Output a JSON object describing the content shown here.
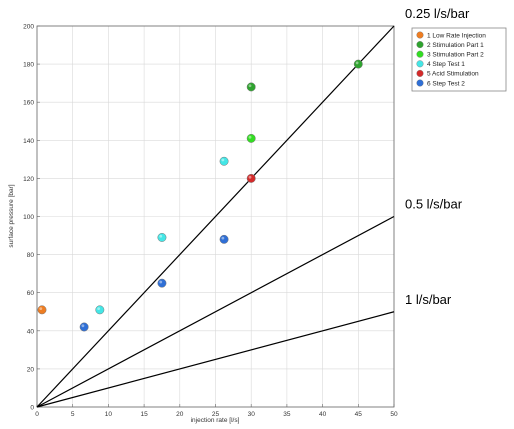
{
  "chart_data": {
    "type": "scatter",
    "title": "",
    "xlabel": "injection rate [l/s]",
    "ylabel": "surface pressure [bar]",
    "xlim": [
      0,
      50
    ],
    "ylim": [
      0,
      200
    ],
    "xticks": [
      0,
      5,
      10,
      15,
      20,
      25,
      30,
      35,
      40,
      45,
      50
    ],
    "yticks": [
      0,
      20,
      40,
      60,
      80,
      100,
      120,
      140,
      160,
      180,
      200
    ],
    "grid": true,
    "legend_position": "top-right",
    "series": [
      {
        "name": "1 Low Rate Injection",
        "color": "#ee7d22",
        "points": [
          [
            0.7,
            51
          ]
        ]
      },
      {
        "name": "2 Stimulation Part 1",
        "color": "#2fa32f",
        "points": [
          [
            30,
            168
          ],
          [
            45,
            180
          ]
        ]
      },
      {
        "name": "3 Stimulation Part 2",
        "color": "#33dd22",
        "points": [
          [
            30,
            141
          ]
        ]
      },
      {
        "name": "4 Step Test 1",
        "color": "#44e6e6",
        "points": [
          [
            8.8,
            51
          ],
          [
            17.5,
            89
          ],
          [
            26.2,
            129
          ]
        ]
      },
      {
        "name": "5 Acid Stimulation",
        "color": "#d42a2a",
        "points": [
          [
            30,
            120
          ]
        ]
      },
      {
        "name": "6 Step Test 2",
        "color": "#2f6fd6",
        "points": [
          [
            6.6,
            42
          ],
          [
            17.5,
            65
          ],
          [
            26.2,
            88
          ]
        ]
      }
    ],
    "reference_lines": [
      {
        "label": "0.25 l/s/bar",
        "slope_bar_per_ls": 4
      },
      {
        "label": "0.5 l/s/bar",
        "slope_bar_per_ls": 2
      },
      {
        "label": "1 l/s/bar",
        "slope_bar_per_ls": 1
      }
    ]
  }
}
